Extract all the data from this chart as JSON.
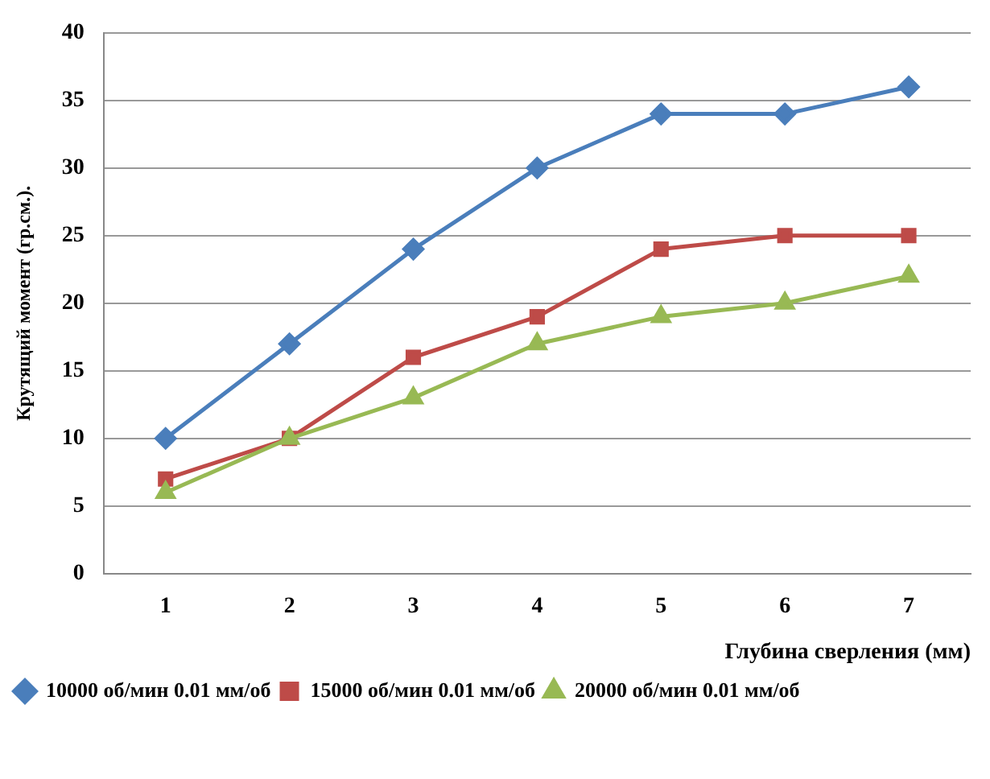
{
  "chart_data": {
    "type": "line",
    "xlabel": "Глубина сверления (мм)",
    "ylabel": "Крутящий момент (гр.см.).",
    "categories": [
      "1",
      "2",
      "3",
      "4",
      "5",
      "6",
      "7"
    ],
    "series": [
      {
        "name": "10000 об/мин 0.01 мм/об",
        "color": "#4a7ebb",
        "marker": "diamond",
        "values": [
          10,
          17,
          24,
          30,
          34,
          34,
          36
        ]
      },
      {
        "name": "15000 об/мин 0.01 мм/об",
        "color": "#be4b48",
        "marker": "square",
        "values": [
          7,
          10,
          16,
          19,
          24,
          25,
          25
        ]
      },
      {
        "name": "20000 об/мин 0.01 мм/об",
        "color": "#98b954",
        "marker": "triangle",
        "values": [
          6,
          10,
          13,
          17,
          19,
          20,
          22
        ]
      }
    ],
    "ylim": [
      0,
      40
    ],
    "yticks": [
      0,
      5,
      10,
      15,
      20,
      25,
      30,
      35,
      40
    ],
    "grid": "y",
    "legend": "bottom left",
    "line_style": "solid"
  }
}
